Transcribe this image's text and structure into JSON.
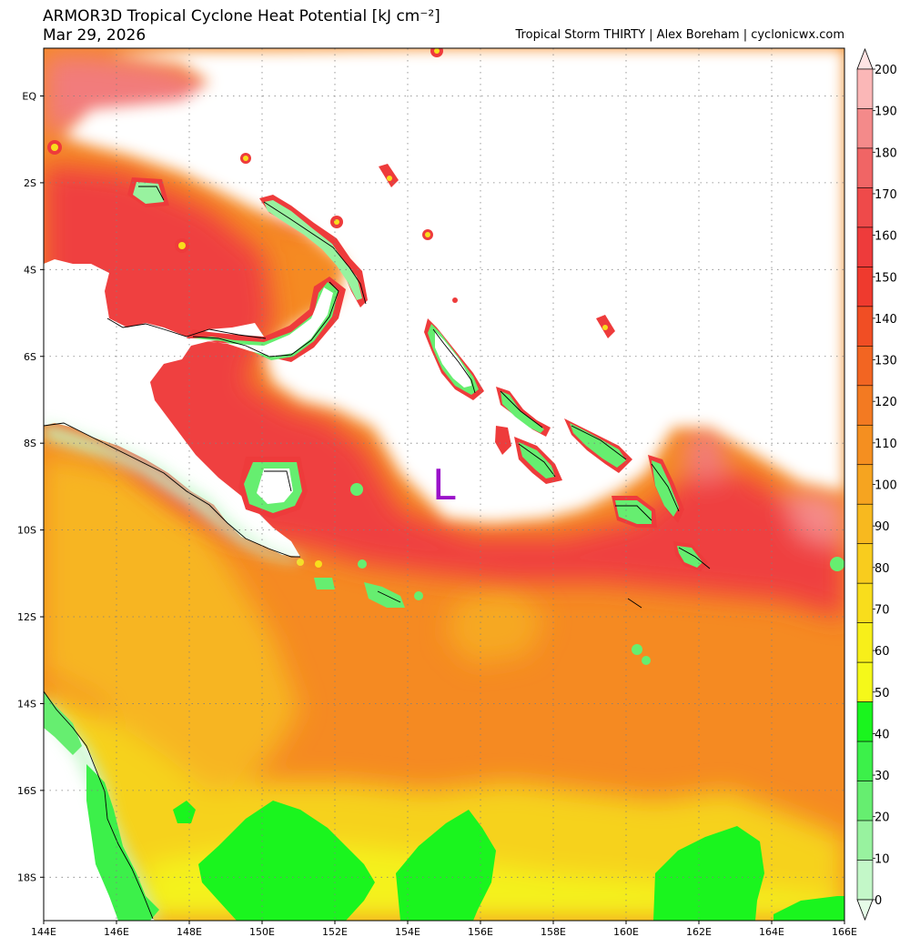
{
  "header": {
    "title": "ARMOR3D Tropical Cyclone Heat Potential [kJ cm⁻²]",
    "date": "Mar 29, 2026",
    "credits": "Tropical Storm THIRTY | Alex Boreham | cyclonicwx.com"
  },
  "map": {
    "lon_range": [
      144,
      166
    ],
    "lat_range": [
      -19,
      1.1
    ],
    "x_ticks": [
      "144E",
      "146E",
      "148E",
      "150E",
      "152E",
      "154E",
      "156E",
      "158E",
      "160E",
      "162E",
      "164E",
      "166E"
    ],
    "y_ticks": [
      "EQ",
      "2S",
      "4S",
      "6S",
      "8S",
      "10S",
      "12S",
      "14S",
      "16S",
      "18S"
    ],
    "storm_marker": {
      "label": "L",
      "lon": 155.0,
      "lat": -9.0,
      "color": "#9a10c9"
    }
  },
  "colorbar": {
    "labels": [
      "200",
      "190",
      "180",
      "170",
      "160",
      "150",
      "140",
      "130",
      "120",
      "110",
      "100",
      "90",
      "80",
      "70",
      "60",
      "50",
      "40",
      "30",
      "20",
      "10",
      "0"
    ],
    "colors": [
      "#ffe3e3",
      "#fbb7b7",
      "#f48a8a",
      "#f06565",
      "#ef4a4a",
      "#ee3b3b",
      "#ef3a2e",
      "#f04e24",
      "#f26522",
      "#f37a22",
      "#f58f20",
      "#f6a420",
      "#f7b91f",
      "#f8cc1e",
      "#f8dd1c",
      "#f7ef1a",
      "#f5f81a",
      "#1af51e",
      "#3cf04a",
      "#66ee70",
      "#98f29f",
      "#c3f7c8",
      "#e6fce8"
    ]
  }
}
